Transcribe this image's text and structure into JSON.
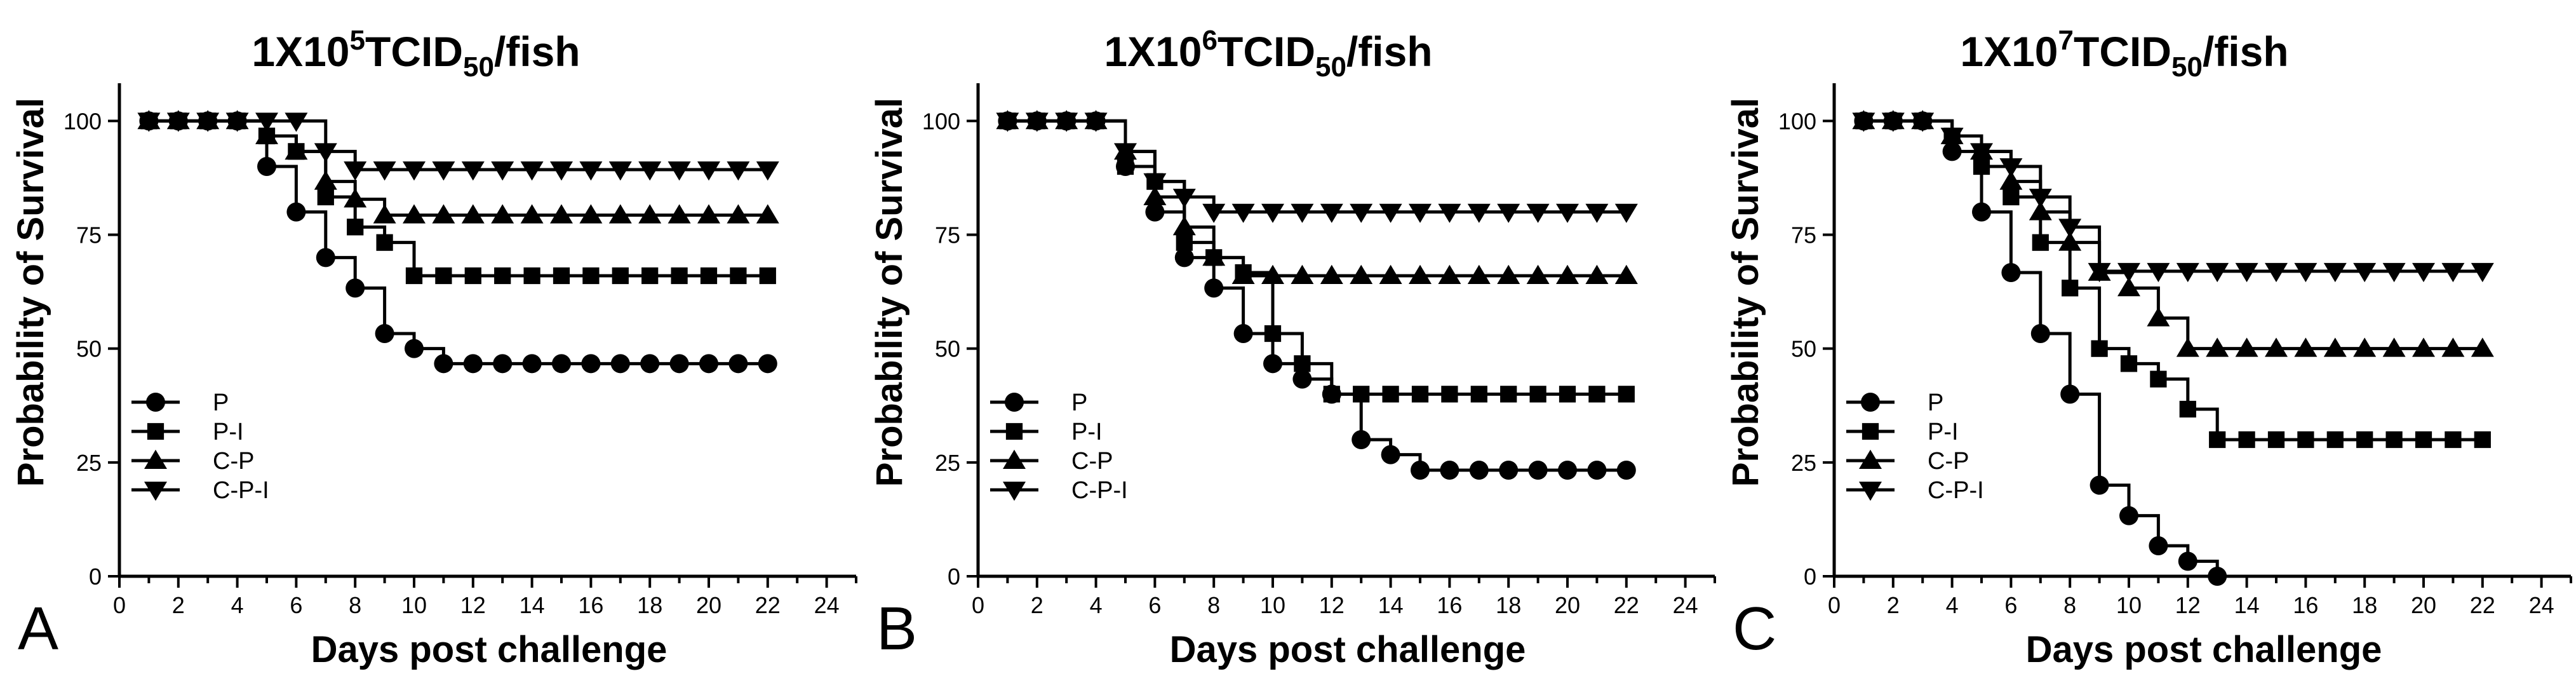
{
  "figure": {
    "panels": [
      {
        "letter": "A",
        "title_main": "1X10",
        "title_sup": "5",
        "title_mid": "TCID",
        "title_sub": "50",
        "title_end": "/fish"
      },
      {
        "letter": "B",
        "title_main": "1X10",
        "title_sup": "6",
        "title_mid": "TCID",
        "title_sub": "50",
        "title_end": "/fish"
      },
      {
        "letter": "C",
        "title_main": "1X10",
        "title_sup": "7",
        "title_mid": "TCID",
        "title_sub": "50",
        "title_end": "/fish"
      }
    ]
  },
  "chart_data": [
    {
      "type": "line",
      "step": true,
      "title": "1X10^5TCID50/fish",
      "xlabel": "Days post challenge",
      "ylabel": "Probability of Survival",
      "xlim": [
        0,
        25
      ],
      "ylim": [
        0,
        108
      ],
      "xticks": [
        0,
        2,
        4,
        6,
        8,
        10,
        12,
        14,
        16,
        18,
        20,
        22,
        24
      ],
      "yticks": [
        0,
        25,
        50,
        75,
        100
      ],
      "legend": "bottom-left",
      "series": [
        {
          "name": "P",
          "marker": "circle",
          "x": [
            1,
            2,
            3,
            4,
            5,
            6,
            7,
            8,
            9,
            10,
            11,
            12,
            13,
            14,
            15,
            16,
            17,
            18,
            19,
            20,
            21,
            22
          ],
          "y": [
            100,
            100,
            100,
            100,
            90,
            80,
            70,
            63.3,
            53.3,
            50,
            46.7,
            46.7,
            46.7,
            46.7,
            46.7,
            46.7,
            46.7,
            46.7,
            46.7,
            46.7,
            46.7,
            46.7
          ]
        },
        {
          "name": "P-I",
          "marker": "square",
          "x": [
            1,
            2,
            3,
            4,
            5,
            6,
            7,
            8,
            9,
            10,
            11,
            12,
            13,
            14,
            15,
            16,
            17,
            18,
            19,
            20,
            21,
            22
          ],
          "y": [
            100,
            100,
            100,
            100,
            96.7,
            93.3,
            83.3,
            76.7,
            73.3,
            66,
            66,
            66,
            66,
            66,
            66,
            66,
            66,
            66,
            66,
            66,
            66,
            66
          ]
        },
        {
          "name": "C-P",
          "marker": "triangle-up",
          "x": [
            1,
            2,
            3,
            4,
            5,
            6,
            7,
            8,
            9,
            10,
            11,
            12,
            13,
            14,
            15,
            16,
            17,
            18,
            19,
            20,
            21,
            22
          ],
          "y": [
            100,
            100,
            100,
            100,
            96.7,
            93.3,
            86.7,
            82.8,
            79.3,
            79.3,
            79.3,
            79.3,
            79.3,
            79.3,
            79.3,
            79.3,
            79.3,
            79.3,
            79.3,
            79.3,
            79.3,
            79.3
          ]
        },
        {
          "name": "C-P-I",
          "marker": "triangle-down",
          "x": [
            1,
            2,
            3,
            4,
            5,
            6,
            7,
            8,
            9,
            10,
            11,
            12,
            13,
            14,
            15,
            16,
            17,
            18,
            19,
            20,
            21,
            22
          ],
          "y": [
            100,
            100,
            100,
            100,
            100,
            100,
            93.3,
            89.3,
            89.3,
            89.3,
            89.3,
            89.3,
            89.3,
            89.3,
            89.3,
            89.3,
            89.3,
            89.3,
            89.3,
            89.3,
            89.3,
            89.3
          ]
        }
      ]
    },
    {
      "type": "line",
      "step": true,
      "title": "1X10^6TCID50/fish",
      "xlabel": "Days post challenge",
      "ylabel": "Probability of Survival",
      "xlim": [
        0,
        25
      ],
      "ylim": [
        0,
        108
      ],
      "xticks": [
        0,
        2,
        4,
        6,
        8,
        10,
        12,
        14,
        16,
        18,
        20,
        22,
        24
      ],
      "yticks": [
        0,
        25,
        50,
        75,
        100
      ],
      "legend": "bottom-left",
      "series": [
        {
          "name": "P",
          "marker": "circle",
          "x": [
            1,
            2,
            3,
            4,
            5,
            6,
            7,
            8,
            9,
            10,
            11,
            12,
            13,
            14,
            15,
            16,
            17,
            18,
            19,
            20,
            21,
            22
          ],
          "y": [
            100,
            100,
            100,
            100,
            90,
            80,
            70,
            63.3,
            53.3,
            46.7,
            43.3,
            40,
            30,
            26.7,
            23.3,
            23.3,
            23.3,
            23.3,
            23.3,
            23.3,
            23.3,
            23.3
          ]
        },
        {
          "name": "P-I",
          "marker": "square",
          "x": [
            1,
            2,
            3,
            4,
            5,
            6,
            7,
            8,
            9,
            10,
            11,
            12,
            13,
            14,
            15,
            16,
            17,
            18,
            19,
            20,
            21,
            22
          ],
          "y": [
            100,
            100,
            100,
            100,
            90,
            86.7,
            73.3,
            70,
            66.7,
            53.3,
            46.7,
            40,
            40,
            40,
            40,
            40,
            40,
            40,
            40,
            40,
            40,
            40
          ]
        },
        {
          "name": "C-P",
          "marker": "triangle-up",
          "x": [
            1,
            2,
            3,
            4,
            5,
            6,
            7,
            8,
            9,
            10,
            11,
            12,
            13,
            14,
            15,
            16,
            17,
            18,
            19,
            20,
            21,
            22
          ],
          "y": [
            100,
            100,
            100,
            100,
            93.3,
            83.3,
            76.7,
            70,
            66,
            66,
            66,
            66,
            66,
            66,
            66,
            66,
            66,
            66,
            66,
            66,
            66,
            66
          ]
        },
        {
          "name": "C-P-I",
          "marker": "triangle-down",
          "x": [
            1,
            2,
            3,
            4,
            5,
            6,
            7,
            8,
            9,
            10,
            11,
            12,
            13,
            14,
            15,
            16,
            17,
            18,
            19,
            20,
            21,
            22
          ],
          "y": [
            100,
            100,
            100,
            100,
            93.3,
            86.7,
            83.3,
            80,
            80,
            80,
            80,
            80,
            80,
            80,
            80,
            80,
            80,
            80,
            80,
            80,
            80,
            80
          ]
        }
      ]
    },
    {
      "type": "line",
      "step": true,
      "title": "1X10^7TCID50/fish",
      "xlabel": "Days post challenge",
      "ylabel": "Probability of Survival",
      "xlim": [
        0,
        25
      ],
      "ylim": [
        0,
        108
      ],
      "xticks": [
        0,
        2,
        4,
        6,
        8,
        10,
        12,
        14,
        16,
        18,
        20,
        22,
        24
      ],
      "yticks": [
        0,
        25,
        50,
        75,
        100
      ],
      "legend": "bottom-left",
      "series": [
        {
          "name": "P",
          "marker": "circle",
          "x": [
            1,
            2,
            3,
            4,
            5,
            6,
            7,
            8,
            9,
            10,
            11,
            12,
            13
          ],
          "y": [
            100,
            100,
            100,
            93.3,
            80,
            66.7,
            53.3,
            40,
            20,
            13.3,
            6.7,
            3.3,
            0
          ]
        },
        {
          "name": "P-I",
          "marker": "square",
          "x": [
            1,
            2,
            3,
            4,
            5,
            6,
            7,
            8,
            9,
            10,
            11,
            12,
            13,
            14,
            15,
            16,
            17,
            18,
            19,
            20,
            21,
            22
          ],
          "y": [
            100,
            100,
            100,
            96.7,
            90,
            83.3,
            73.3,
            63.3,
            50,
            46.7,
            43.3,
            36.7,
            30,
            30,
            30,
            30,
            30,
            30,
            30,
            30,
            30,
            30
          ]
        },
        {
          "name": "C-P",
          "marker": "triangle-up",
          "x": [
            1,
            2,
            3,
            4,
            5,
            6,
            7,
            8,
            9,
            10,
            11,
            12,
            13,
            14,
            15,
            16,
            17,
            18,
            19,
            20,
            21,
            22
          ],
          "y": [
            100,
            100,
            100,
            96.7,
            93.3,
            86.7,
            80,
            73.3,
            66.7,
            63.3,
            56.7,
            50,
            50,
            50,
            50,
            50,
            50,
            50,
            50,
            50,
            50,
            50
          ]
        },
        {
          "name": "C-P-I",
          "marker": "triangle-down",
          "x": [
            1,
            2,
            3,
            4,
            5,
            6,
            7,
            8,
            9,
            10,
            11,
            12,
            13,
            14,
            15,
            16,
            17,
            18,
            19,
            20,
            21,
            22
          ],
          "y": [
            100,
            100,
            100,
            96.7,
            93.3,
            90,
            83.3,
            76.7,
            67,
            67,
            67,
            67,
            67,
            67,
            67,
            67,
            67,
            67,
            67,
            67,
            67,
            67
          ]
        }
      ]
    }
  ]
}
